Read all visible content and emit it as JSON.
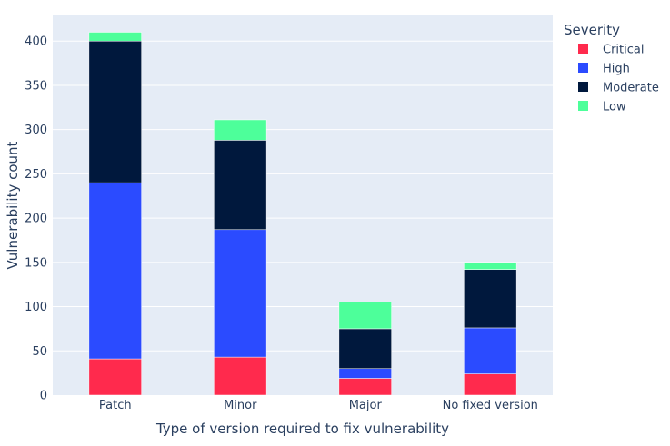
{
  "chart_data": {
    "type": "bar",
    "stacked": true,
    "categories": [
      "Patch",
      "Minor",
      "Major",
      "No fixed version"
    ],
    "series": [
      {
        "name": "Critical",
        "color": "#ff2a4d",
        "values": [
          41,
          43,
          19,
          24
        ]
      },
      {
        "name": "High",
        "color": "#2b4bff",
        "values": [
          199,
          144,
          11,
          52
        ]
      },
      {
        "name": "Moderate",
        "color": "#00183d",
        "values": [
          160,
          101,
          45,
          66
        ]
      },
      {
        "name": "Low",
        "color": "#4dff9a",
        "values": [
          10,
          23,
          30,
          8
        ]
      }
    ],
    "xlabel": "Type of version required to fix vulnerability",
    "ylabel": "Vulnerability count",
    "ylim": [
      0,
      430
    ],
    "yticks": [
      0,
      50,
      100,
      150,
      200,
      250,
      300,
      350,
      400
    ],
    "grid": true,
    "legend": {
      "title": "Severity",
      "placement": "top-right"
    },
    "plot_bg": "#e5ecf6",
    "text_color": "#2a3f5f"
  }
}
